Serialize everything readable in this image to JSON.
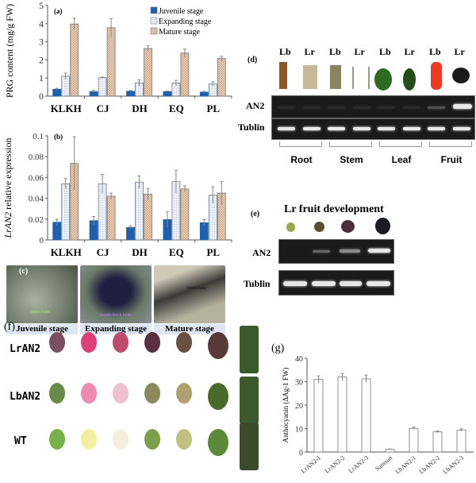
{
  "chart_data": [
    {
      "panel": "(a)",
      "type": "bar",
      "categories": [
        "KLKH",
        "CJ",
        "DH",
        "EQ",
        "PL"
      ],
      "ylabel": "PRG content (mg/g FW)",
      "ylim": [
        0,
        5
      ],
      "yticks": [
        0,
        1,
        2,
        3,
        4,
        5
      ],
      "legend": "top-right",
      "series": [
        {
          "name": "Juvenile stage",
          "values": [
            0.38,
            0.25,
            0.27,
            0.25,
            0.22
          ],
          "errors": [
            0.05,
            0.08,
            0.04,
            0.04,
            0.04
          ],
          "color": "#1f5fb0"
        },
        {
          "name": "Expanding stage",
          "values": [
            1.1,
            1.02,
            0.73,
            0.72,
            0.67
          ],
          "errors": [
            0.17,
            0.03,
            0.17,
            0.15,
            0.12
          ],
          "color": "#e8eef6"
        },
        {
          "name": "Mature stage",
          "values": [
            3.98,
            3.78,
            2.63,
            2.38,
            2.08
          ],
          "errors": [
            0.33,
            0.5,
            0.15,
            0.22,
            0.12
          ],
          "color": "#ecd3bb"
        }
      ]
    },
    {
      "panel": "(b)",
      "type": "bar",
      "categories": [
        "KLKH",
        "CJ",
        "DH",
        "EQ",
        "PL"
      ],
      "ylabel": "LrAN2 relative expression",
      "ylim": [
        0,
        0.1
      ],
      "yticks": [
        0,
        0.02,
        0.04,
        0.06,
        0.08,
        0.1
      ],
      "series": [
        {
          "values": [
            0.017,
            0.0185,
            0.012,
            0.0195,
            0.0165
          ],
          "errors": [
            0.003,
            0.004,
            0.0015,
            0.0075,
            0.003
          ],
          "color": "#1f5fb0"
        },
        {
          "values": [
            0.054,
            0.054,
            0.0555,
            0.056,
            0.043
          ],
          "errors": [
            0.005,
            0.009,
            0.006,
            0.011,
            0.008
          ],
          "color": "#e8eef6"
        },
        {
          "values": [
            0.0735,
            0.042,
            0.044,
            0.049,
            0.045
          ],
          "errors": [
            0.0255,
            0.003,
            0.0055,
            0.003,
            0.011
          ],
          "color": "#ecd3bb"
        }
      ]
    },
    {
      "panel": "(g)",
      "type": "bar",
      "categories": [
        "LrAN2-1",
        "LrAN2-2",
        "LrAN2-3",
        "Samsun",
        "LbAN2-1",
        "LbAN2-2",
        "LbAN2-3"
      ],
      "ylabel": "Anthocyanin (ΔAg-1 FW)",
      "ylim": [
        0,
        40
      ],
      "yticks": [
        0,
        10,
        20,
        30,
        40
      ],
      "series": [
        {
          "values": [
            31,
            32,
            31.2,
            1.2,
            10.1,
            8.6,
            9.4
          ],
          "errors": [
            1.5,
            1.5,
            1.6,
            0.1,
            0.5,
            0.4,
            0.5
          ],
          "color": "#ffffff"
        }
      ]
    }
  ],
  "panel_c": {
    "label": "(c)",
    "captions": [
      "Juvenile stage",
      "Expanding stage",
      "Mature stage"
    ],
    "annotations": [
      "green fruits",
      "purple-black fruits",
      "black fruits"
    ]
  },
  "panel_d": {
    "label": "(d)",
    "lanes": [
      "Lb",
      "Lr",
      "Lb",
      "Lr",
      "Lb",
      "Lr",
      "Lb",
      "Lr"
    ],
    "rows": [
      "AN2",
      "Tublin"
    ],
    "groups": [
      "Root",
      "Stem",
      "Leaf",
      "Fruit"
    ]
  },
  "panel_e": {
    "label": "(e)",
    "title": "Lr fruit development",
    "rows": [
      "AN2",
      "Tublin"
    ]
  },
  "panel_f": {
    "label": "(f)",
    "rows": [
      "LrAN2",
      "LbAN2",
      "WT"
    ]
  }
}
